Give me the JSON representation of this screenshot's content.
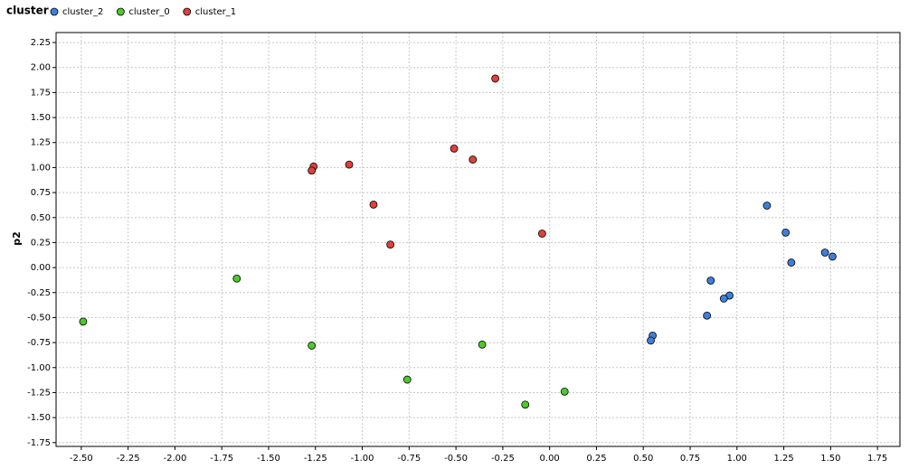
{
  "chart_data": {
    "type": "scatter",
    "legend_title": "cluster",
    "y_label": "p2",
    "xlim": [
      -2.62,
      1.87
    ],
    "ylim": [
      -1.77,
      2.35
    ],
    "grid": true,
    "legend": "top-left",
    "xticks": [
      {
        "value": -2.5,
        "label": "-2.50"
      },
      {
        "value": -2.25,
        "label": "-2.25"
      },
      {
        "value": -2,
        "label": "-2.00"
      },
      {
        "value": -1.75,
        "label": "-1.75"
      },
      {
        "value": -1.5,
        "label": "-1.50"
      },
      {
        "value": -1.25,
        "label": "-1.25"
      },
      {
        "value": -1,
        "label": "-1.00"
      },
      {
        "value": -0.75,
        "label": "-0.75"
      },
      {
        "value": -0.5,
        "label": "-0.50"
      },
      {
        "value": -0.25,
        "label": "-0.25"
      },
      {
        "value": 0,
        "label": "0.00"
      },
      {
        "value": 0.25,
        "label": "0.25"
      },
      {
        "value": 0.5,
        "label": "0.50"
      },
      {
        "value": 0.75,
        "label": "0.75"
      },
      {
        "value": 1,
        "label": "1.00"
      },
      {
        "value": 1.25,
        "label": "1.25"
      },
      {
        "value": 1.5,
        "label": "1.50"
      },
      {
        "value": 1.75,
        "label": "1.75"
      }
    ],
    "yticks": [
      {
        "value": -1.75,
        "label": "-1.75"
      },
      {
        "value": -1.5,
        "label": "-1.50"
      },
      {
        "value": -1.25,
        "label": "-1.25"
      },
      {
        "value": -1,
        "label": "-1.00"
      },
      {
        "value": -0.75,
        "label": "-0.75"
      },
      {
        "value": -0.5,
        "label": "-0.50"
      },
      {
        "value": -0.25,
        "label": "-0.25"
      },
      {
        "value": 0,
        "label": "0.00"
      },
      {
        "value": 0.25,
        "label": "0.25"
      },
      {
        "value": 0.5,
        "label": "0.50"
      },
      {
        "value": 0.75,
        "label": "0.75"
      },
      {
        "value": 1,
        "label": "1.00"
      },
      {
        "value": 1.25,
        "label": "1.25"
      },
      {
        "value": 1.5,
        "label": "1.50"
      },
      {
        "value": 1.75,
        "label": "1.75"
      },
      {
        "value": 2,
        "label": "2.00"
      },
      {
        "value": 2.25,
        "label": "2.25"
      }
    ],
    "series": [
      {
        "name": "cluster_2",
        "color": "#3f7fdb",
        "x": [
          1.16,
          1.26,
          1.29,
          1.47,
          1.51,
          0.86,
          0.96,
          0.93,
          0.84,
          0.55,
          0.54
        ],
        "values": [
          0.62,
          0.35,
          0.05,
          0.15,
          0.11,
          -0.13,
          -0.28,
          -0.31,
          -0.48,
          -0.68,
          -0.73
        ]
      },
      {
        "name": "cluster_0",
        "color": "#4cc92c",
        "x": [
          -2.49,
          -1.67,
          -1.27,
          -0.76,
          -0.36,
          -0.13,
          0.08
        ],
        "values": [
          -0.54,
          -0.11,
          -0.78,
          -1.12,
          -0.77,
          -1.37,
          -1.24
        ]
      },
      {
        "name": "cluster_1",
        "color": "#e0413a",
        "x": [
          -0.29,
          -0.51,
          -0.41,
          -1.07,
          -1.26,
          -1.27,
          -0.94,
          -0.85,
          -0.04
        ],
        "values": [
          1.89,
          1.19,
          1.08,
          1.03,
          1.01,
          0.97,
          0.63,
          0.23,
          0.34
        ]
      }
    ]
  }
}
